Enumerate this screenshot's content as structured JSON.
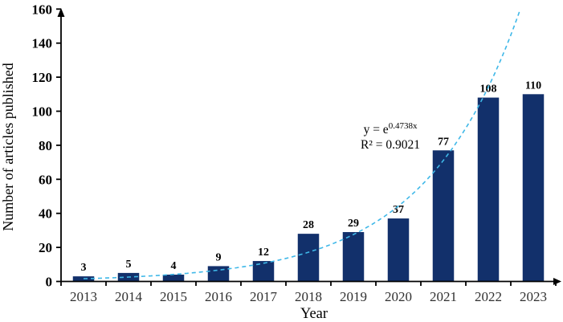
{
  "chart_data": {
    "type": "bar",
    "title": "",
    "categories": [
      "2013",
      "2014",
      "2015",
      "2016",
      "2017",
      "2018",
      "2019",
      "2020",
      "2021",
      "2022",
      "2023"
    ],
    "values": [
      3,
      5,
      4,
      9,
      12,
      28,
      29,
      37,
      77,
      108,
      110
    ],
    "data_labels": [
      "3",
      "5",
      "4",
      "9",
      "12",
      "28",
      "29",
      "37",
      "77",
      "108",
      "110"
    ],
    "xlabel": "Year",
    "ylabel": "Number of articles published",
    "ylim": [
      0,
      160
    ],
    "yticks": [
      0,
      20,
      40,
      60,
      80,
      100,
      120,
      140,
      160
    ],
    "grid": false,
    "legend_position": "none",
    "bar_color": "#12306b",
    "axis_color": "#000000",
    "trendline": {
      "type": "exponential",
      "equation_base": "y = e",
      "equation_exponent": "0.4738x",
      "r_squared_label": "R² = 0.9021",
      "growth_rate": 0.4738,
      "color": "#3fb8e8",
      "style": "dashed"
    }
  }
}
